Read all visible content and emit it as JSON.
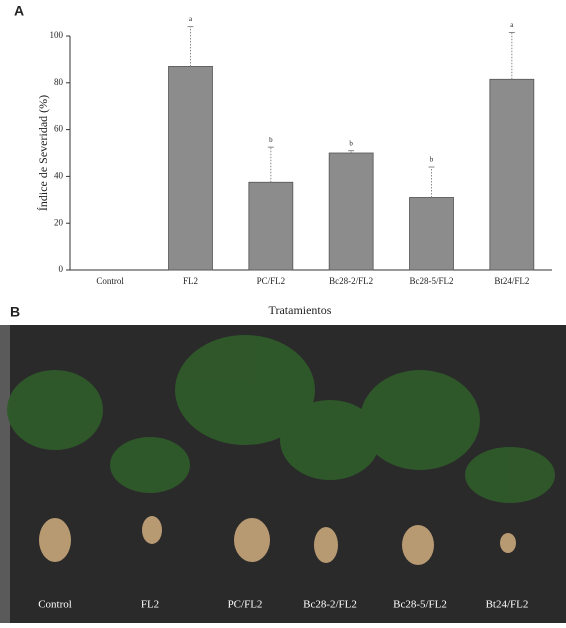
{
  "panel_labels": [
    "A",
    "B"
  ],
  "chart_data": {
    "type": "bar",
    "categories": [
      "Control",
      "FL2",
      "PC/FL2",
      "Bc28-2/FL2",
      "Bc28-5/FL2",
      "Bt24/FL2"
    ],
    "values": [
      0,
      87,
      37.5,
      50,
      31,
      81.5
    ],
    "errors": [
      0,
      17,
      15,
      1,
      13,
      20
    ],
    "letters": [
      null,
      "a",
      "b",
      "b",
      "b",
      "a"
    ],
    "color": "#8c8c8c",
    "ylabel": "Índice de Severidad (%)",
    "xlabel": "Tratamientos",
    "ylim": [
      0,
      100
    ],
    "yticks": [
      0,
      20,
      40,
      60,
      80,
      100
    ]
  },
  "photo": {
    "labels": [
      "Control",
      "FL2",
      "PC/FL2",
      "Bc28-2/FL2",
      "Bc28-5/FL2",
      "Bt24/FL2"
    ]
  }
}
